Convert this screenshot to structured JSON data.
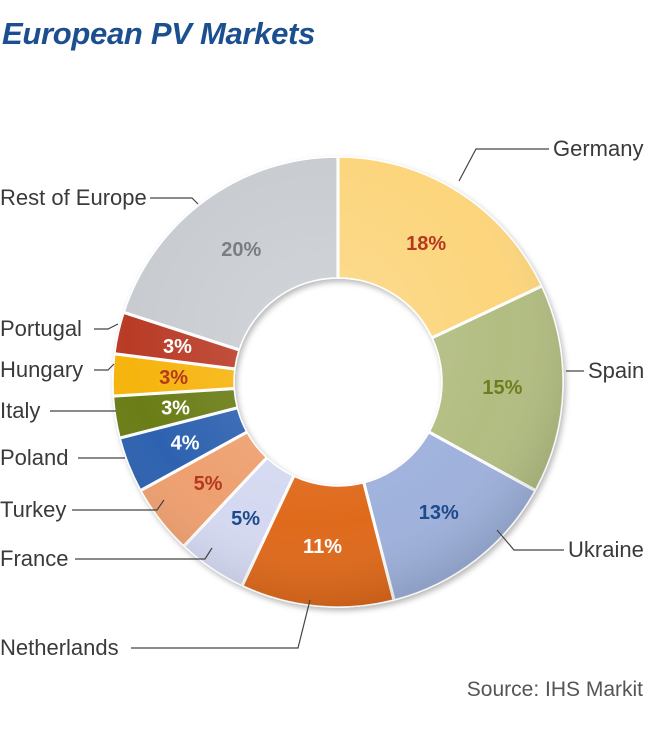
{
  "title": "European PV Markets",
  "source": "Source: IHS Markit",
  "chart_data": {
    "type": "pie",
    "style": "donut",
    "title": "European PV Markets",
    "slices": [
      {
        "label": "Germany",
        "value": 18,
        "pct_text": "18%",
        "color": "#fcd57c",
        "text_color": "#b4391f"
      },
      {
        "label": "Spain",
        "value": 15,
        "pct_text": "15%",
        "color": "#b2bd82",
        "text_color": "#6e7e1e"
      },
      {
        "label": "Ukraine",
        "value": 13,
        "pct_text": "13%",
        "color": "#9fb2dc",
        "text_color": "#1c4a8c"
      },
      {
        "label": "Netherlands",
        "value": 11,
        "pct_text": "11%",
        "color": "#df6b1b",
        "text_color": "#ffffff"
      },
      {
        "label": "France",
        "value": 5,
        "pct_text": "5%",
        "color": "#d4d9f1",
        "text_color": "#1c4a8c"
      },
      {
        "label": "Turkey",
        "value": 5,
        "pct_text": "5%",
        "color": "#eea070",
        "text_color": "#b4391f"
      },
      {
        "label": "Poland",
        "value": 4,
        "pct_text": "4%",
        "color": "#2d62b0",
        "text_color": "#ffffff"
      },
      {
        "label": "Italy",
        "value": 3,
        "pct_text": "3%",
        "color": "#6a7d17",
        "text_color": "#ffffff"
      },
      {
        "label": "Hungary",
        "value": 3,
        "pct_text": "3%",
        "color": "#f6b40d",
        "text_color": "#b4391f"
      },
      {
        "label": "Portugal",
        "value": 3,
        "pct_text": "3%",
        "color": "#b93a26",
        "text_color": "#ffffff"
      },
      {
        "label": "Rest of Europe",
        "value": 20,
        "pct_text": "20%",
        "color": "#c8ccd1",
        "text_color": "#7a7e84"
      }
    ],
    "line_color": "#444444",
    "label_color": "#3a3a3a"
  }
}
